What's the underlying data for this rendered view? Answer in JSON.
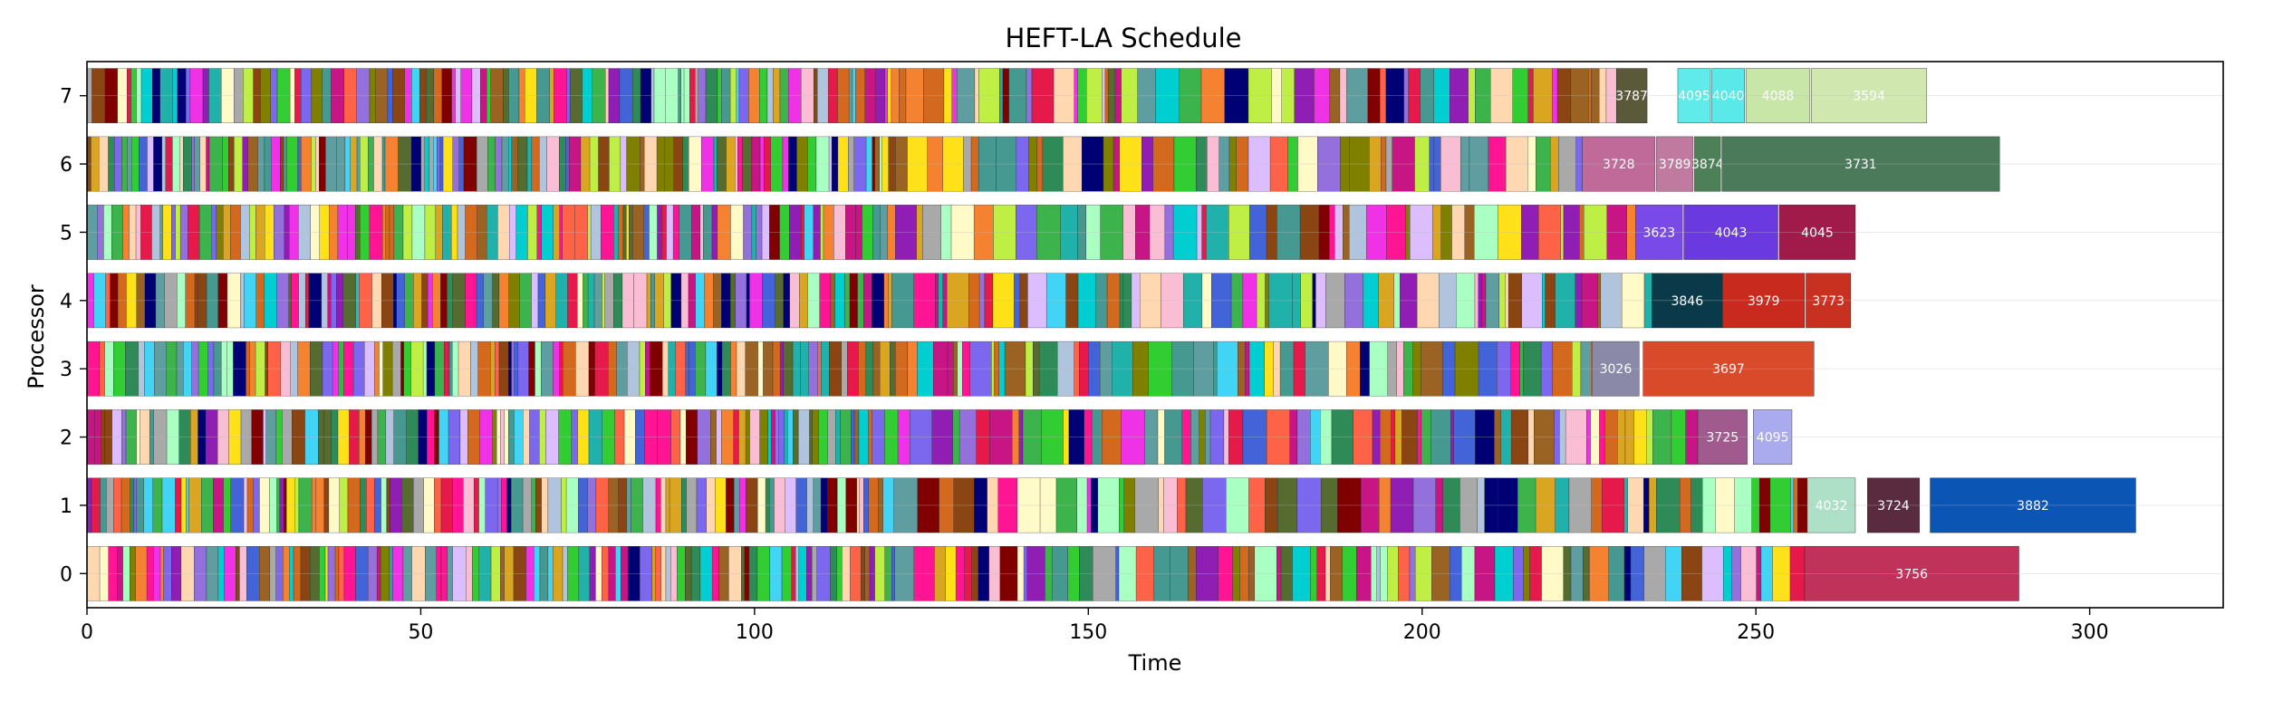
{
  "chart_data": {
    "type": "gantt",
    "title": "HEFT-LA Schedule",
    "xlabel": "Time",
    "ylabel": "Processor",
    "xlim": [
      0,
      320
    ],
    "xticks": [
      0,
      50,
      100,
      150,
      200,
      250,
      300
    ],
    "processors": [
      0,
      1,
      2,
      3,
      4,
      5,
      6,
      7
    ],
    "grid": "horizontal-light",
    "processor_end_times": {
      "0": 289.4,
      "1": 306.9,
      "2": 264.3,
      "3": 259.0,
      "4": 277.6,
      "5": 264.9,
      "6": 286.5,
      "7": 275.6
    },
    "labeled_tasks": [
      {
        "processor": 0,
        "task": "3756",
        "start": 257.3,
        "end": 289.4,
        "color": "#c0325a"
      },
      {
        "processor": 1,
        "task": "3882",
        "start": 276.1,
        "end": 306.9,
        "color": "#0b55b5"
      },
      {
        "processor": 1,
        "task": "3724",
        "start": 266.7,
        "end": 274.5,
        "color": "#5a2a3e"
      },
      {
        "processor": 1,
        "task": "4032",
        "start": 257.7,
        "end": 264.9,
        "color": "#aee0c8"
      },
      {
        "processor": 2,
        "task": "4095",
        "start": 249.6,
        "end": 255.4,
        "color": "#aaaaee"
      },
      {
        "processor": 2,
        "task": "3725",
        "start": 241.3,
        "end": 248.7,
        "color": "#a05a8e"
      },
      {
        "processor": 3,
        "task": "3697",
        "start": 233.1,
        "end": 258.7,
        "color": "#d94a2a"
      },
      {
        "processor": 3,
        "task": "3026",
        "start": 225.5,
        "end": 232.5,
        "color": "#8a8aa8"
      },
      {
        "processor": 4,
        "task": "3773",
        "start": 257.5,
        "end": 264.2,
        "color": "#c83020"
      },
      {
        "processor": 4,
        "task": "3979",
        "start": 245.0,
        "end": 257.3,
        "color": "#c82a1e"
      },
      {
        "processor": 4,
        "task": "3846",
        "start": 234.4,
        "end": 245.0,
        "color": "#0a3a4a"
      },
      {
        "processor": 5,
        "task": "4045",
        "start": 253.5,
        "end": 264.9,
        "color": "#a01a4a"
      },
      {
        "processor": 5,
        "task": "4043",
        "start": 239.2,
        "end": 253.3,
        "color": "#6a3ae0"
      },
      {
        "processor": 5,
        "task": "3623",
        "start": 232.0,
        "end": 239.0,
        "color": "#7a4ae8"
      },
      {
        "processor": 6,
        "task": "3731",
        "start": 244.9,
        "end": 286.5,
        "color": "#4a7a5a"
      },
      {
        "processor": 6,
        "task": "3874",
        "start": 240.8,
        "end": 244.7,
        "color": "#4e8058"
      },
      {
        "processor": 6,
        "task": "3789",
        "start": 235.1,
        "end": 240.6,
        "color": "#c07aa0"
      },
      {
        "processor": 6,
        "task": "3728",
        "start": 224.0,
        "end": 234.9,
        "color": "#c06a9a"
      },
      {
        "processor": 7,
        "task": "3594",
        "start": 258.3,
        "end": 275.6,
        "color": "#d0e8b0"
      },
      {
        "processor": 7,
        "task": "4088",
        "start": 248.5,
        "end": 258.1,
        "color": "#c8e6a8"
      },
      {
        "processor": 7,
        "task": "4040",
        "start": 243.4,
        "end": 248.3,
        "color": "#5ae8e8"
      },
      {
        "processor": 7,
        "task": "4095",
        "start": 238.3,
        "end": 243.2,
        "color": "#60eaea"
      },
      {
        "processor": 7,
        "task": "3787",
        "start": 229.1,
        "end": 233.7,
        "color": "#5a5a3a"
      }
    ],
    "dense_segments_note": "Hundreds of additional short tasks precede these labeled tasks on every processor (time 0 to ~230)."
  }
}
